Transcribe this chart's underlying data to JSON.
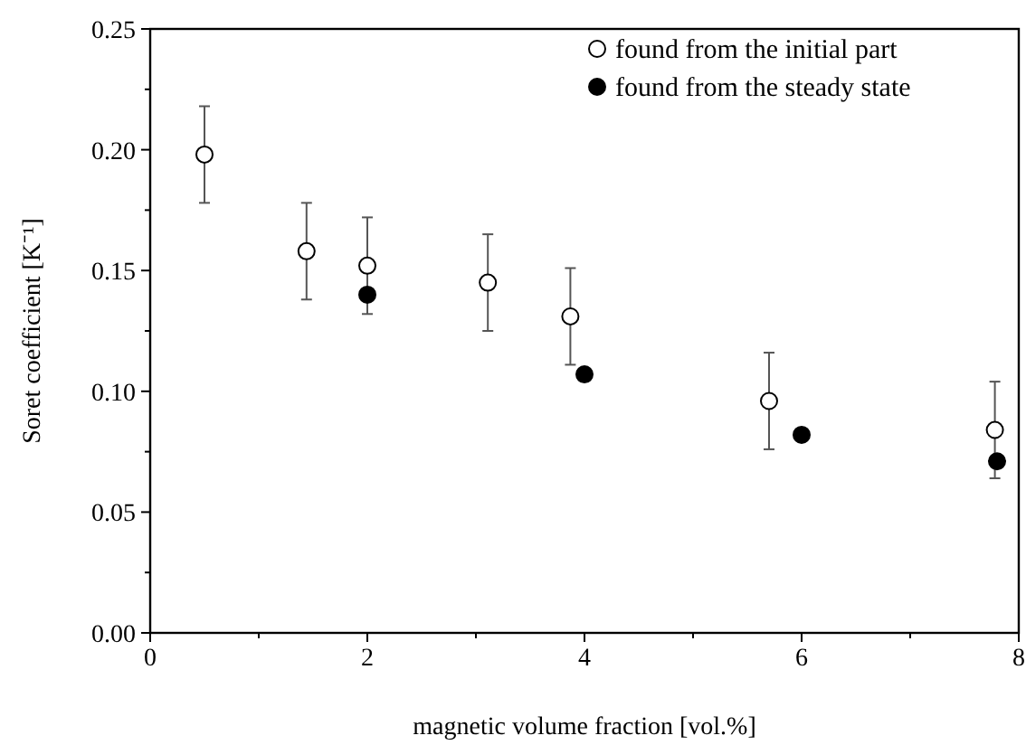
{
  "chart_data": {
    "type": "scatter",
    "xlabel": "magnetic volume fraction [vol.%]",
    "ylabel": "Soret coefficient [K⁻¹]",
    "xlim": [
      0,
      8
    ],
    "ylim": [
      0,
      0.25
    ],
    "xticks": [
      0,
      {
        "value": 1,
        "label": null
      },
      2,
      {
        "value": 3,
        "label": null
      },
      4,
      {
        "value": 5,
        "label": null
      },
      6,
      {
        "value": 7,
        "label": null
      },
      8
    ],
    "yticks": [
      {
        "value": 0,
        "label": "0.00"
      },
      {
        "value": 0.025,
        "label": null
      },
      0.05,
      {
        "value": 0.075,
        "label": null
      },
      {
        "value": 0.1,
        "label": "0.10"
      },
      {
        "value": 0.125,
        "label": null
      },
      0.15,
      {
        "value": 0.175,
        "label": null
      },
      {
        "value": 0.2,
        "label": "0.20"
      },
      {
        "value": 0.225,
        "label": null
      },
      0.25
    ],
    "marker": "circle",
    "legend": "top right",
    "grid": false,
    "series": [
      {
        "name": "found from the initial part",
        "color": "#ffffff",
        "x": [
          0.5,
          1.44,
          2.0,
          3.11,
          3.87,
          5.7,
          7.78
        ],
        "values": [
          0.198,
          0.158,
          0.152,
          0.145,
          0.131,
          0.096,
          0.084
        ],
        "errors": [
          0.02,
          0.02,
          0.02,
          0.02,
          0.02,
          0.02,
          0.02
        ]
      },
      {
        "name": "found from the steady state",
        "color": "#000000",
        "x": [
          2.0,
          4.0,
          6.0,
          7.8
        ],
        "values": [
          0.14,
          0.107,
          0.082,
          0.071
        ]
      }
    ]
  }
}
